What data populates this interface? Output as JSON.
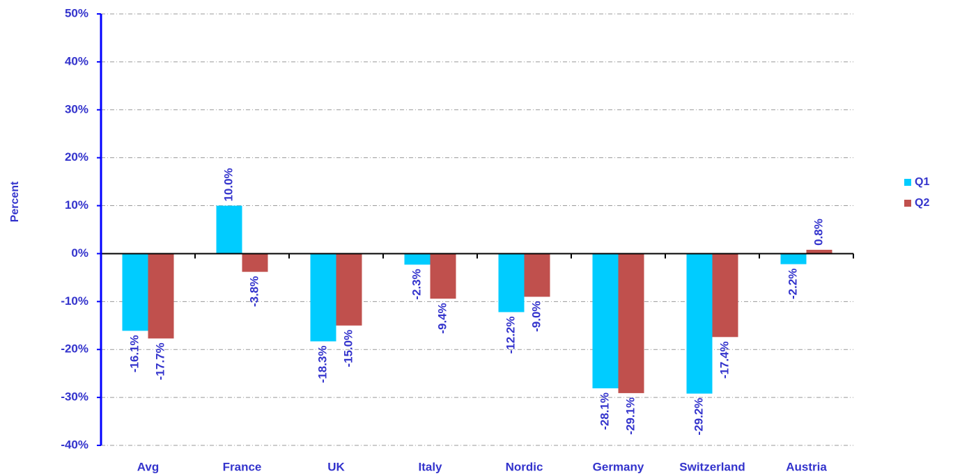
{
  "chart_data": {
    "type": "bar",
    "y_label": "Percent",
    "categories": [
      "Avg",
      "France",
      "UK",
      "Italy",
      "Nordic",
      "Germany",
      "Switzerland",
      "Austria"
    ],
    "series": [
      {
        "name": "Q1",
        "color": "#00ccff",
        "values": [
          -16.1,
          10.0,
          -18.3,
          -2.3,
          -12.2,
          -28.1,
          -29.2,
          -2.2
        ],
        "value_labels": [
          "-16.1%",
          "10.0%",
          "-18.3%",
          "-2.3%",
          "-12.2%",
          "-28.1%",
          "-29.2%",
          "-2.2%"
        ]
      },
      {
        "name": "Q2",
        "color": "#c0504d",
        "values": [
          -17.7,
          -3.8,
          -15.0,
          -9.4,
          -9.0,
          -29.1,
          -17.4,
          0.8
        ],
        "value_labels": [
          "-17.7%",
          "-3.8%",
          "-15.0%",
          "-9.4%",
          "-9.0%",
          "-29.1%",
          "-17.4%",
          "0.8%"
        ]
      }
    ],
    "ylim": [
      -40,
      50
    ],
    "yticks": [
      {
        "value": -40,
        "label": "-40%"
      },
      {
        "value": -30,
        "label": "-30%"
      },
      {
        "value": -20,
        "label": "-20%"
      },
      {
        "value": -10,
        "label": "-10%"
      },
      {
        "value": 0,
        "label": "0%"
      },
      {
        "value": 10,
        "label": "10%"
      },
      {
        "value": 20,
        "label": "20%"
      },
      {
        "value": 30,
        "label": "30%"
      },
      {
        "value": 40,
        "label": "40%"
      },
      {
        "value": 50,
        "label": "50%"
      }
    ],
    "grid": true,
    "legend": "right"
  }
}
